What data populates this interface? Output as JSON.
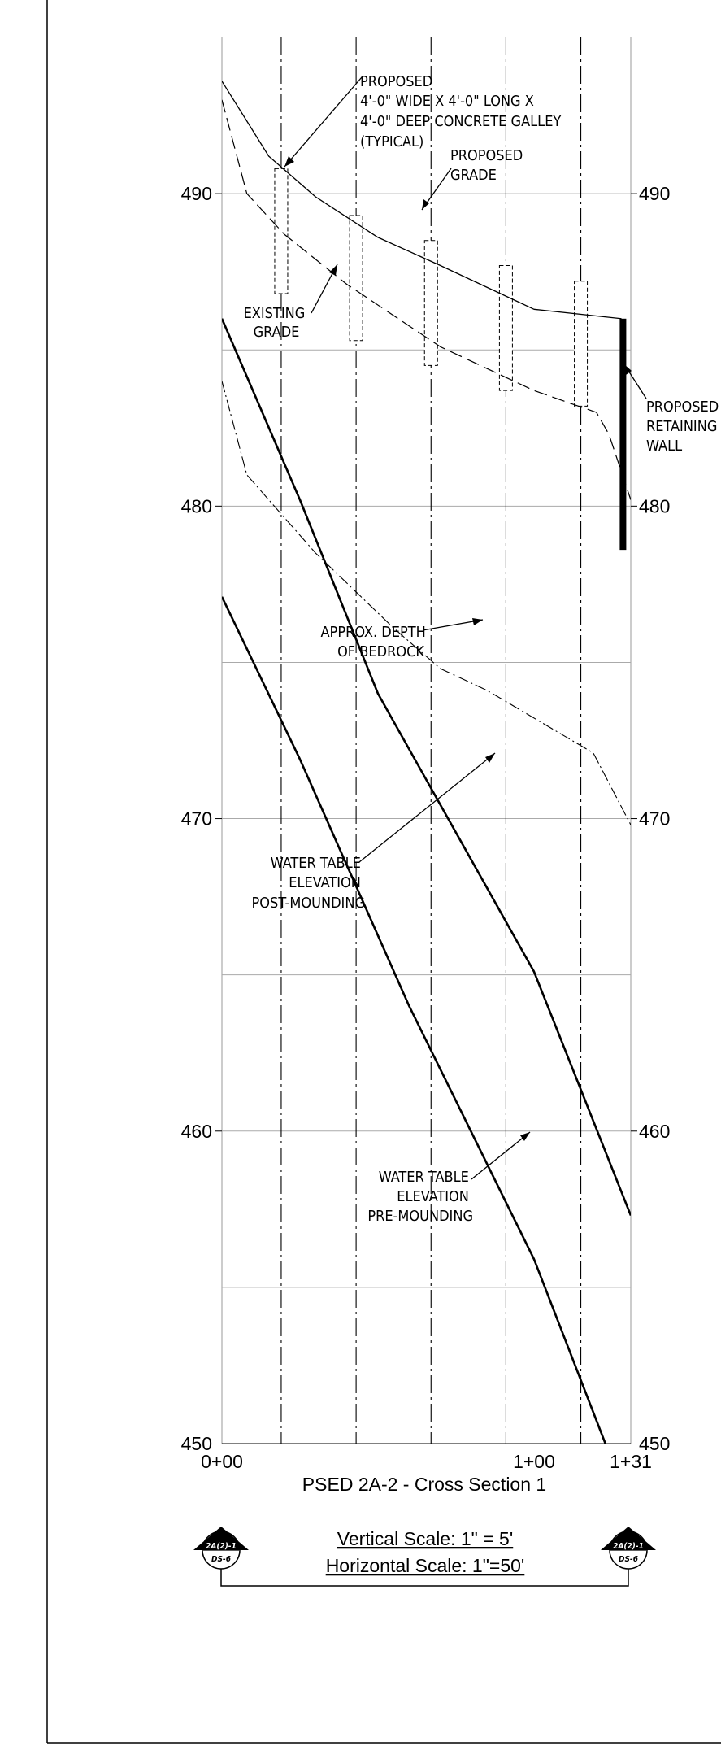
{
  "sheet": {
    "title": "PSED 2A-2 - Cross Section 1",
    "vertical_scale": "Vertical Scale: 1\" = 5'",
    "horizontal_scale": "Horizontal Scale: 1\"=50'",
    "section_marker_left": {
      "top": "2A(2)-1",
      "bottom": "DS-6"
    },
    "section_marker_right": {
      "top": "2A(2)-1",
      "bottom": "DS-6"
    }
  },
  "axes": {
    "y_ticks_left": [
      "490",
      "480",
      "470",
      "460",
      "450"
    ],
    "y_ticks_right": [
      "490",
      "480",
      "470",
      "460",
      "450"
    ],
    "x_tick_labels": [
      "0+00",
      "1+00",
      "1+31"
    ]
  },
  "annotations": {
    "galley": [
      "PROPOSED",
      "4'-0\" WIDE X 4'-0\" LONG X",
      "4'-0\" DEEP CONCRETE GALLEY",
      "(TYPICAL)"
    ],
    "proposed_grade": [
      "PROPOSED",
      "GRADE"
    ],
    "existing_grade": [
      "EXISTING",
      "GRADE"
    ],
    "retaining_wall": [
      "PROPOSED",
      "RETAINING",
      "WALL"
    ],
    "bedrock": [
      "APPROX. DEPTH",
      "OF BEDROCK"
    ],
    "water_post": [
      "WATER TABLE",
      "ELEVATION",
      "POST-MOUNDING"
    ],
    "water_pre": [
      "WATER TABLE",
      "ELEVATION",
      "PRE-MOUNDING"
    ]
  },
  "chart_data": {
    "type": "line",
    "x_unit": "station (ft)",
    "y_unit": "elevation (ft)",
    "xlim": [
      0,
      131
    ],
    "ylim": [
      450,
      495
    ],
    "grid_elevations": [
      455,
      460,
      465,
      470,
      475,
      480,
      485,
      490
    ],
    "grid_labeled": [
      450,
      460,
      470,
      480,
      490
    ],
    "galley_stations": [
      19,
      43,
      67,
      91,
      115
    ],
    "galleys": [
      {
        "station": 19,
        "top": 490.8,
        "bottom": 486.8
      },
      {
        "station": 43,
        "top": 489.3,
        "bottom": 485.3
      },
      {
        "station": 67,
        "top": 488.5,
        "bottom": 484.5
      },
      {
        "station": 91,
        "top": 487.7,
        "bottom": 483.7
      },
      {
        "station": 115,
        "top": 487.2,
        "bottom": 483.2
      }
    ],
    "series": [
      {
        "key": "proposed_grade",
        "style": "solid-thin",
        "points": [
          [
            0,
            493.6
          ],
          [
            5,
            492.8
          ],
          [
            15,
            491.2
          ],
          [
            30,
            489.9
          ],
          [
            50,
            488.6
          ],
          [
            70,
            487.7
          ],
          [
            100,
            486.3
          ],
          [
            128,
            486.0
          ]
        ]
      },
      {
        "key": "existing_grade",
        "style": "dashed",
        "points": [
          [
            0,
            493.0
          ],
          [
            8,
            490.0
          ],
          [
            20,
            488.7
          ],
          [
            40,
            487.1
          ],
          [
            70,
            485.1
          ],
          [
            100,
            483.7
          ],
          [
            120,
            483.0
          ],
          [
            124,
            482.3
          ],
          [
            131,
            480.2
          ]
        ]
      },
      {
        "key": "bedrock",
        "style": "dash-dot",
        "points": [
          [
            0,
            484.0
          ],
          [
            8,
            481.0
          ],
          [
            30,
            478.5
          ],
          [
            55,
            476.1
          ],
          [
            70,
            474.8
          ],
          [
            85,
            474.1
          ],
          [
            119,
            472.1
          ],
          [
            131,
            469.8
          ]
        ]
      },
      {
        "key": "water_post",
        "style": "solid-thick",
        "points": [
          [
            0,
            486.0
          ],
          [
            25,
            480.2
          ],
          [
            50,
            474.0
          ],
          [
            100,
            465.1
          ],
          [
            131,
            457.3
          ]
        ]
      },
      {
        "key": "water_pre",
        "style": "solid-thick",
        "points": [
          [
            0,
            477.1
          ],
          [
            25,
            471.9
          ],
          [
            60,
            464.0
          ],
          [
            100,
            455.9
          ],
          [
            131,
            447.9
          ]
        ]
      }
    ],
    "retaining_wall": {
      "station": 128.5,
      "top": 486.0,
      "bottom": 478.6
    }
  }
}
